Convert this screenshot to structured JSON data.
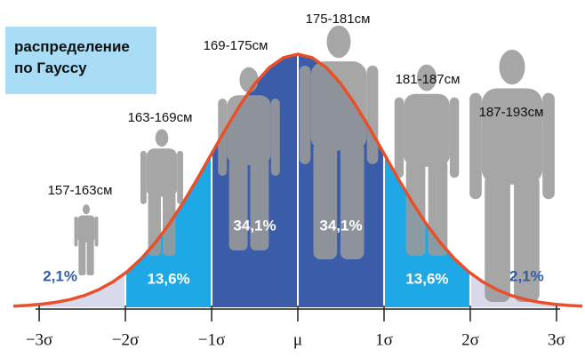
{
  "chart_data": {
    "type": "histogram",
    "title": "распределение по Гауссу",
    "bins": [
      -3,
      -2,
      -1,
      0,
      1,
      2,
      3
    ],
    "categories": [
      "157-163см",
      "163-169см",
      "169-175см",
      "175-181см",
      "181-187см",
      "187-193см"
    ],
    "values": [
      2.1,
      13.6,
      34.1,
      34.1,
      13.6,
      2.1
    ],
    "value_labels": [
      "2,1%",
      "13,6%",
      "34,1%",
      "34,1%",
      "13,6%",
      "2,1%"
    ],
    "colors": [
      "#d9d9ec",
      "#1ea8e6",
      "#3b5ca8",
      "#3b5ca8",
      "#1ea8e6",
      "#d9d9ec"
    ],
    "curve_color": "#e8502a",
    "xlim": [
      -3.3,
      3.3
    ],
    "xticks": [
      {
        "value": -3,
        "label": "−3σ"
      },
      {
        "value": -2,
        "label": "−2σ"
      },
      {
        "value": -1,
        "label": "−1σ"
      },
      {
        "value": 0,
        "label": "μ"
      },
      {
        "value": 1,
        "label": "1σ"
      },
      {
        "value": 2,
        "label": "2σ"
      },
      {
        "value": 3,
        "label": "3σ"
      }
    ]
  }
}
